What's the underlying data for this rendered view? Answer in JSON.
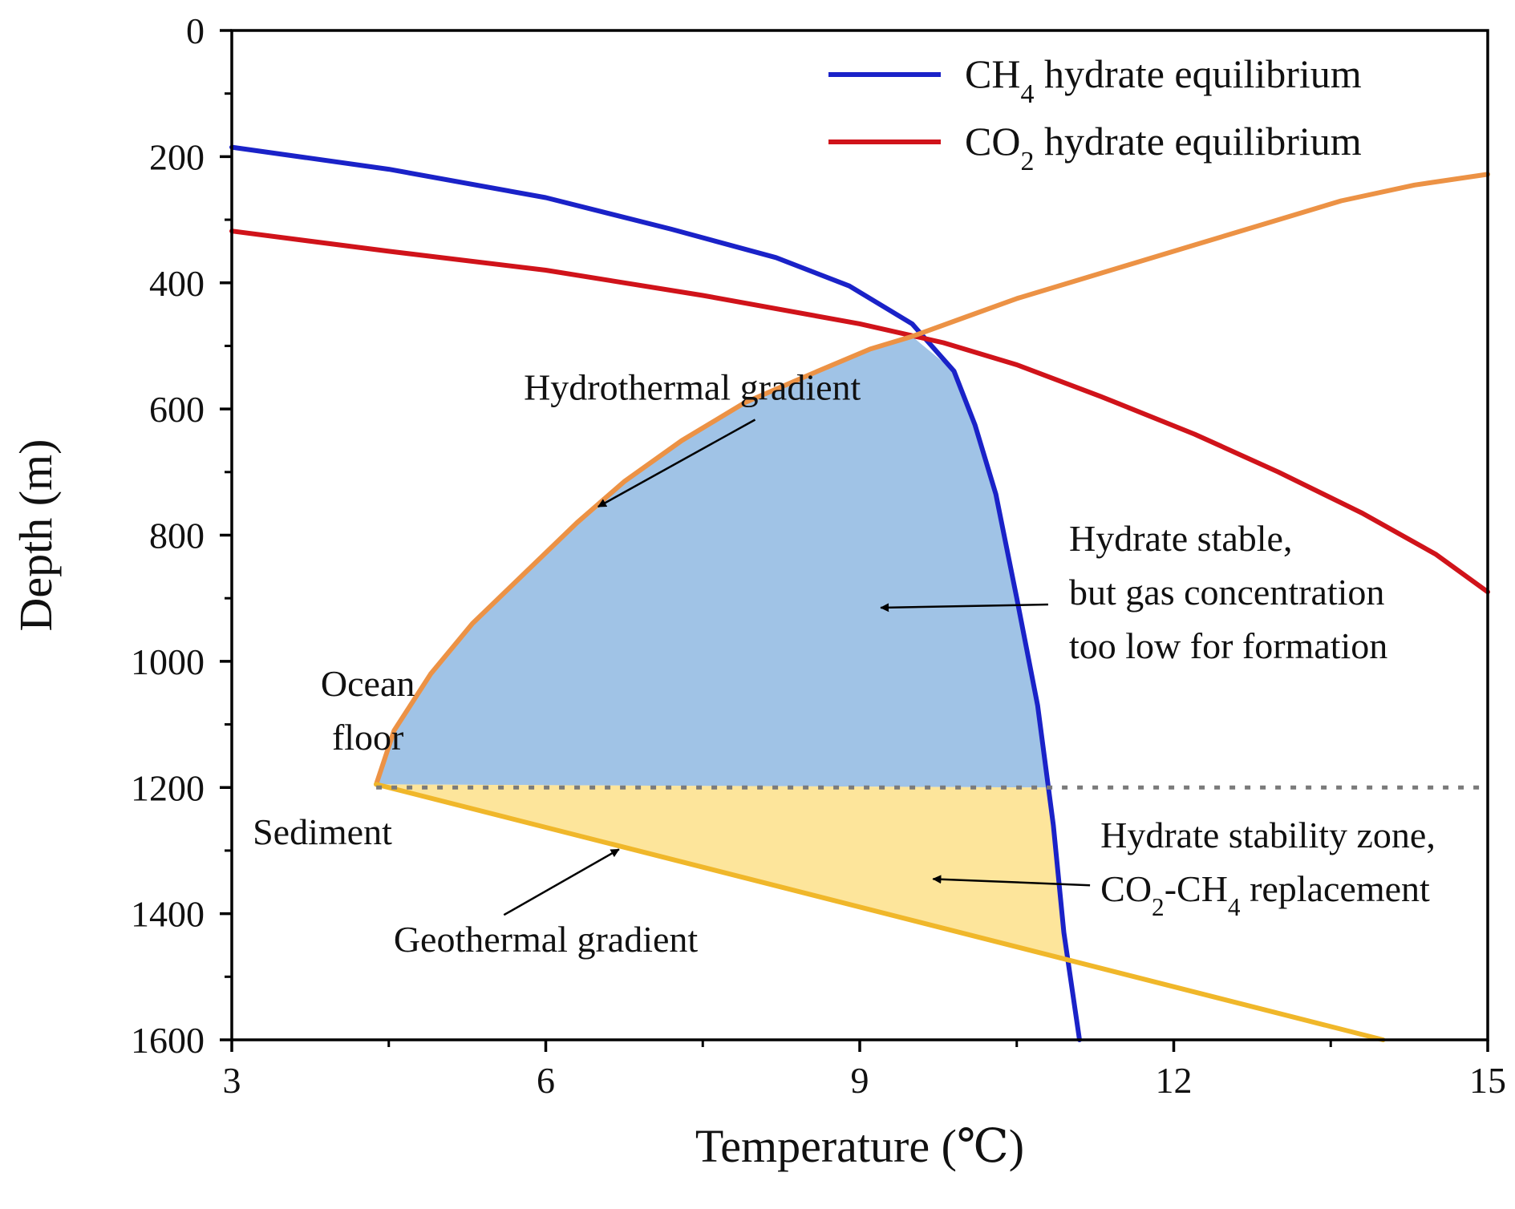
{
  "chart_data": {
    "type": "line",
    "title": "",
    "xlabel": "Temperature (℃)",
    "ylabel": "Depth (m)",
    "xlim": [
      3,
      15
    ],
    "ylim": [
      0,
      1600
    ],
    "y_inverted": true,
    "x_ticks": [
      3,
      6,
      9,
      12,
      15
    ],
    "y_ticks": [
      0,
      200,
      400,
      600,
      800,
      1000,
      1200,
      1400,
      1600
    ],
    "x_minor_step": 1.5,
    "y_minor_step": 100,
    "series": [
      {
        "name": "CH4 hydrate equilibrium",
        "legend": {
          "base1": "CH",
          "sub1": "4",
          "rest": " hydrate equilibrium"
        },
        "color": "#1a22c8",
        "in_legend": true,
        "x": [
          3.0,
          4.5,
          6.0,
          7.2,
          8.2,
          8.9,
          9.5,
          9.9,
          10.1,
          10.3,
          10.5,
          10.7,
          10.85,
          10.95,
          11.1
        ],
        "y": [
          185,
          220,
          265,
          315,
          360,
          405,
          465,
          540,
          625,
          735,
          900,
          1070,
          1260,
          1430,
          1600
        ]
      },
      {
        "name": "CO2 hydrate equilibrium",
        "legend": {
          "base1": "CO",
          "sub1": "2",
          "rest": " hydrate equilibrium"
        },
        "color": "#d0131a",
        "in_legend": true,
        "x": [
          3.0,
          4.5,
          6.0,
          7.5,
          9.0,
          9.8,
          10.5,
          11.3,
          12.2,
          13.0,
          13.8,
          14.5,
          15.0
        ],
        "y": [
          318,
          350,
          380,
          420,
          465,
          495,
          530,
          580,
          640,
          700,
          765,
          830,
          890
        ]
      },
      {
        "name": "Hydrothermal gradient",
        "color": "#ec9245",
        "in_legend": false,
        "x": [
          4.38,
          4.55,
          4.9,
          5.3,
          5.8,
          6.3,
          6.75,
          7.3,
          7.9,
          8.6,
          9.1,
          9.5,
          10.0,
          10.5,
          11.0,
          11.6,
          12.2,
          12.9,
          13.6,
          14.3,
          15.0
        ],
        "y": [
          1195,
          1110,
          1020,
          940,
          860,
          780,
          715,
          650,
          590,
          540,
          505,
          485,
          455,
          425,
          400,
          370,
          340,
          305,
          270,
          245,
          228
        ]
      },
      {
        "name": "Geothermal gradient",
        "color": "#f0b72a",
        "in_legend": false,
        "x": [
          4.38,
          14.0
        ],
        "y": [
          1195,
          1600
        ]
      },
      {
        "name": "Ocean floor line",
        "color": "#7a7a7a",
        "dashed": true,
        "in_legend": false,
        "x": [
          4.38,
          15.0
        ],
        "y": [
          1200,
          1200
        ]
      }
    ],
    "regions": [
      {
        "name": "Hydrate stable, but gas concentration too low for formation",
        "color": "#a0c3e6",
        "x": [
          4.38,
          4.55,
          4.9,
          5.3,
          5.8,
          6.3,
          6.75,
          7.3,
          7.9,
          8.6,
          9.1,
          9.5,
          9.9,
          10.1,
          10.3,
          10.5,
          10.7,
          10.78
        ],
        "y": [
          1195,
          1110,
          1020,
          940,
          860,
          780,
          715,
          650,
          590,
          540,
          505,
          485,
          540,
          625,
          735,
          900,
          1070,
          1200
        ]
      },
      {
        "name": "Hydrate stability zone, CO2-CH4 replacement",
        "color": "#fde59b",
        "x": [
          4.38,
          10.78,
          10.85,
          10.95,
          11.0
        ],
        "y": [
          1195,
          1200,
          1260,
          1430,
          1474
        ]
      }
    ],
    "annotations": [
      {
        "id": "hydrothermal",
        "lines": [
          "Hydrothermal gradient"
        ],
        "text_at": [
          7.4,
          585
        ],
        "align": "middle",
        "arrow_from": [
          8.0,
          617
        ],
        "arrow_to": [
          6.5,
          755
        ]
      },
      {
        "id": "hydrate-stable",
        "lines": [
          "Hydrate stable,",
          "but gas concentration",
          "too low for formation"
        ],
        "text_at": [
          11.0,
          825
        ],
        "align": "start",
        "arrow_from": [
          10.8,
          910
        ],
        "arrow_to": [
          9.2,
          915
        ]
      },
      {
        "id": "ocean-floor",
        "lines": [
          "Ocean",
          "floor"
        ],
        "text_at": [
          4.3,
          1055
        ],
        "align": "middle"
      },
      {
        "id": "sediment",
        "lines": [
          "Sediment"
        ],
        "text_at": [
          3.2,
          1290
        ],
        "align": "start"
      },
      {
        "id": "geothermal",
        "lines": [
          "Geothermal gradient"
        ],
        "text_at": [
          6.0,
          1460
        ],
        "align": "middle",
        "arrow_from": [
          5.6,
          1402
        ],
        "arrow_to": [
          6.7,
          1298
        ]
      },
      {
        "id": "stability-zone",
        "lines": [
          "Hydrate stability zone,"
        ],
        "rich_line": {
          "base1": "CO",
          "sub1": "2",
          "base2": "-CH",
          "sub2": "4",
          "rest": " replacement"
        },
        "text_at": [
          11.3,
          1295
        ],
        "align": "start",
        "arrow_from": [
          11.2,
          1355
        ],
        "arrow_to": [
          9.7,
          1345
        ]
      }
    ],
    "grid": false,
    "legend_position": "top-right"
  }
}
